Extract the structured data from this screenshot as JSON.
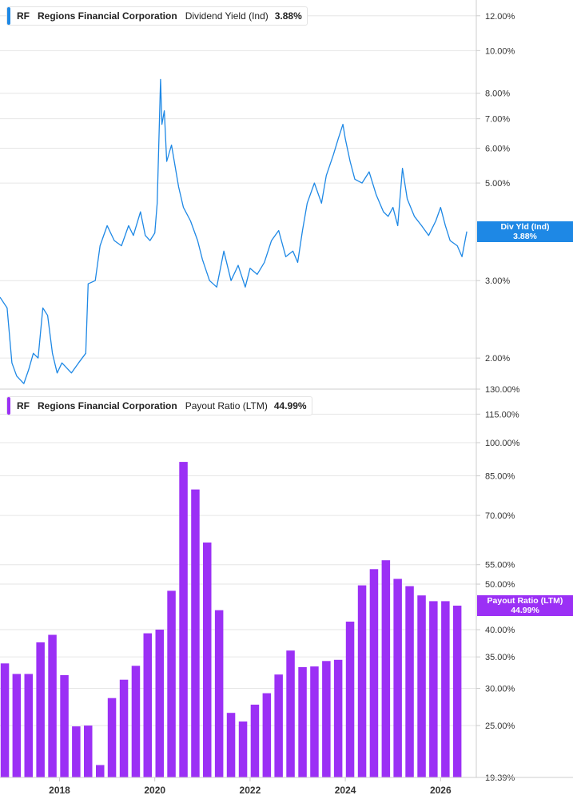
{
  "colors": {
    "yield_line": "#1e88e5",
    "payout_bar": "#9b30f5",
    "grid": "#e6e6e6",
    "axis": "#cccccc",
    "text": "#333333"
  },
  "top_legend": {
    "ticker": "RF",
    "company": "Regions Financial Corporation",
    "metric": "Dividend Yield (Ind)",
    "value": "3.88%"
  },
  "bottom_legend": {
    "ticker": "RF",
    "company": "Regions Financial Corporation",
    "metric": "Payout Ratio (LTM)",
    "value": "44.99%"
  },
  "top_end_label": {
    "line1": "Div Yld (Ind)",
    "line2": "3.88%"
  },
  "bottom_end_label": {
    "line1": "Payout Ratio (LTM)",
    "line2": "44.99%"
  },
  "chart_data": [
    {
      "type": "line",
      "scale": "log",
      "series": [
        {
          "name": "Dividend Yield (Ind)",
          "unit": "%",
          "x": [
            2016.75,
            2016.9,
            2017.0,
            2017.1,
            2017.25,
            2017.35,
            2017.45,
            2017.55,
            2017.65,
            2017.75,
            2017.85,
            2017.95,
            2018.05,
            2018.25,
            2018.4,
            2018.55,
            2018.6,
            2018.75,
            2018.85,
            2019.0,
            2019.15,
            2019.3,
            2019.45,
            2019.55,
            2019.7,
            2019.8,
            2019.9,
            2020.0,
            2020.05,
            2020.12,
            2020.15,
            2020.2,
            2020.25,
            2020.35,
            2020.5,
            2020.6,
            2020.75,
            2020.9,
            2021.0,
            2021.15,
            2021.3,
            2021.45,
            2021.6,
            2021.75,
            2021.9,
            2022.0,
            2022.15,
            2022.3,
            2022.45,
            2022.6,
            2022.75,
            2022.9,
            2023.0,
            2023.1,
            2023.2,
            2023.35,
            2023.5,
            2023.6,
            2023.75,
            2023.85,
            2023.95,
            2024.0,
            2024.1,
            2024.2,
            2024.35,
            2024.5,
            2024.65,
            2024.8,
            2024.9,
            2025.0,
            2025.1,
            2025.2,
            2025.3,
            2025.45,
            2025.6,
            2025.75,
            2025.9,
            2026.0,
            2026.1,
            2026.2,
            2026.35,
            2026.45,
            2026.55
          ],
          "values": [
            2.75,
            2.6,
            1.95,
            1.82,
            1.75,
            1.88,
            2.05,
            2.0,
            2.6,
            2.5,
            2.05,
            1.85,
            1.95,
            1.85,
            1.95,
            2.05,
            2.95,
            3.0,
            3.6,
            4.0,
            3.7,
            3.6,
            4.0,
            3.8,
            4.3,
            3.8,
            3.7,
            3.85,
            4.5,
            8.6,
            6.8,
            7.3,
            5.6,
            6.1,
            4.9,
            4.4,
            4.1,
            3.7,
            3.35,
            3.0,
            2.9,
            3.5,
            3.0,
            3.25,
            2.9,
            3.2,
            3.1,
            3.3,
            3.7,
            3.9,
            3.4,
            3.5,
            3.3,
            3.9,
            4.5,
            5.0,
            4.5,
            5.2,
            5.8,
            6.3,
            6.8,
            6.3,
            5.6,
            5.1,
            5.0,
            5.3,
            4.7,
            4.3,
            4.2,
            4.4,
            4.0,
            5.4,
            4.6,
            4.2,
            4.0,
            3.8,
            4.1,
            4.4,
            4.0,
            3.7,
            3.6,
            3.4,
            3.88
          ]
        }
      ],
      "xlim": [
        2016.75,
        2026.75
      ],
      "ylim": [
        1.7,
        12.5
      ],
      "y_ticks": [
        2,
        3,
        5,
        6,
        7,
        8,
        10,
        12
      ],
      "y_tick_labels": [
        "2.00%",
        "3.00%",
        "5.00%",
        "6.00%",
        "7.00%",
        "8.00%",
        "10.00%",
        "12.00%"
      ],
      "axis_position": "right"
    },
    {
      "type": "bar",
      "scale": "log",
      "series": [
        {
          "name": "Payout Ratio (LTM)",
          "unit": "%",
          "x": [
            2016.75,
            2017.0,
            2017.25,
            2017.5,
            2017.75,
            2018.0,
            2018.25,
            2018.5,
            2018.75,
            2019.0,
            2019.25,
            2019.5,
            2019.75,
            2020.0,
            2020.25,
            2020.5,
            2020.75,
            2021.0,
            2021.25,
            2021.5,
            2021.75,
            2022.0,
            2022.25,
            2022.5,
            2022.75,
            2023.0,
            2023.25,
            2023.5,
            2023.75,
            2024.0,
            2024.25,
            2024.5,
            2024.75,
            2025.0,
            2025.25,
            2025.5,
            2025.75,
            2026.0,
            2026.25
          ],
          "values": [
            33.9,
            32.2,
            32.2,
            37.6,
            39.0,
            32.0,
            24.9,
            25.0,
            20.6,
            28.6,
            31.3,
            33.5,
            39.3,
            40.0,
            48.4,
            91.0,
            79.5,
            61.3,
            44.0,
            26.6,
            25.5,
            27.7,
            29.3,
            32.1,
            36.1,
            33.3,
            33.4,
            34.3,
            34.5,
            41.6,
            49.7,
            53.8,
            56.2,
            51.3,
            49.5,
            47.3,
            46.0,
            46.0,
            44.99
          ]
        }
      ],
      "xlim": [
        2016.75,
        2026.75
      ],
      "ylim": [
        19.39,
        130
      ],
      "y_ticks": [
        19.39,
        25,
        30,
        35,
        40,
        50,
        55,
        70,
        85,
        100,
        115,
        130
      ],
      "y_tick_labels": [
        "19.39%",
        "25.00%",
        "30.00%",
        "35.00%",
        "40.00%",
        "50.00%",
        "55.00%",
        "70.00%",
        "85.00%",
        "100.00%",
        "115.00%",
        "130.00%"
      ],
      "x_ticks": [
        2018,
        2020,
        2022,
        2024,
        2026
      ],
      "x_tick_labels": [
        "2018",
        "2020",
        "2022",
        "2024",
        "2026"
      ],
      "axis_position": "right"
    }
  ]
}
